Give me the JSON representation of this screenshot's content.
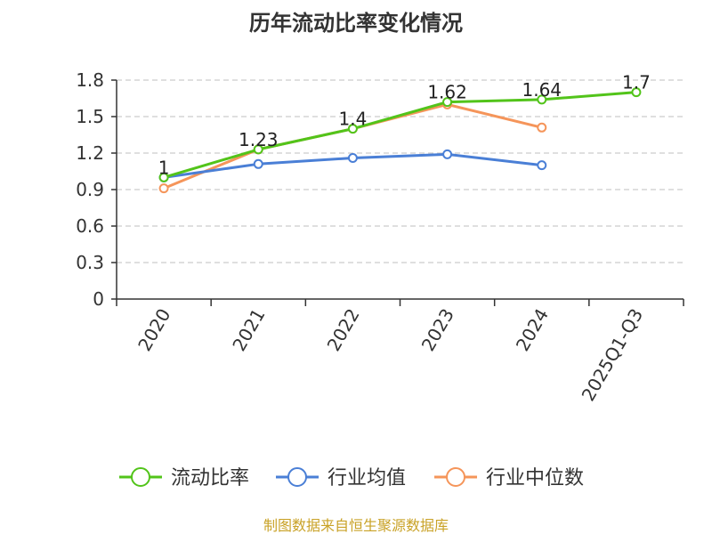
{
  "chart_data": {
    "type": "line",
    "title": "历年流动比率变化情况",
    "categories": [
      "2020",
      "2021",
      "2022",
      "2023",
      "2024",
      "2025Q1-Q3"
    ],
    "ylim": [
      0,
      1.8
    ],
    "yticks": [
      0,
      0.3,
      0.6,
      0.9,
      1.2,
      1.5,
      1.8
    ],
    "ytick_labels": [
      "0",
      "0.3",
      "0.6",
      "0.9",
      "1.2",
      "1.5",
      "1.8"
    ],
    "grid": true,
    "legend_position": "bottom",
    "series": [
      {
        "name": "流动比率",
        "color": "#52c41a",
        "values": [
          1,
          1.23,
          1.4,
          1.62,
          1.64,
          1.7
        ],
        "labels": [
          "1",
          "1.23",
          "1.4",
          "1.62",
          "1.64",
          "1.7"
        ]
      },
      {
        "name": "行业均值",
        "color": "#4a7fd6",
        "values": [
          1.0,
          1.11,
          1.16,
          1.19,
          1.1,
          null
        ]
      },
      {
        "name": "行业中位数",
        "color": "#f5955a",
        "values": [
          0.91,
          1.23,
          1.4,
          1.6,
          1.41,
          null
        ]
      }
    ],
    "source": "制图数据来自恒生聚源数据库"
  }
}
